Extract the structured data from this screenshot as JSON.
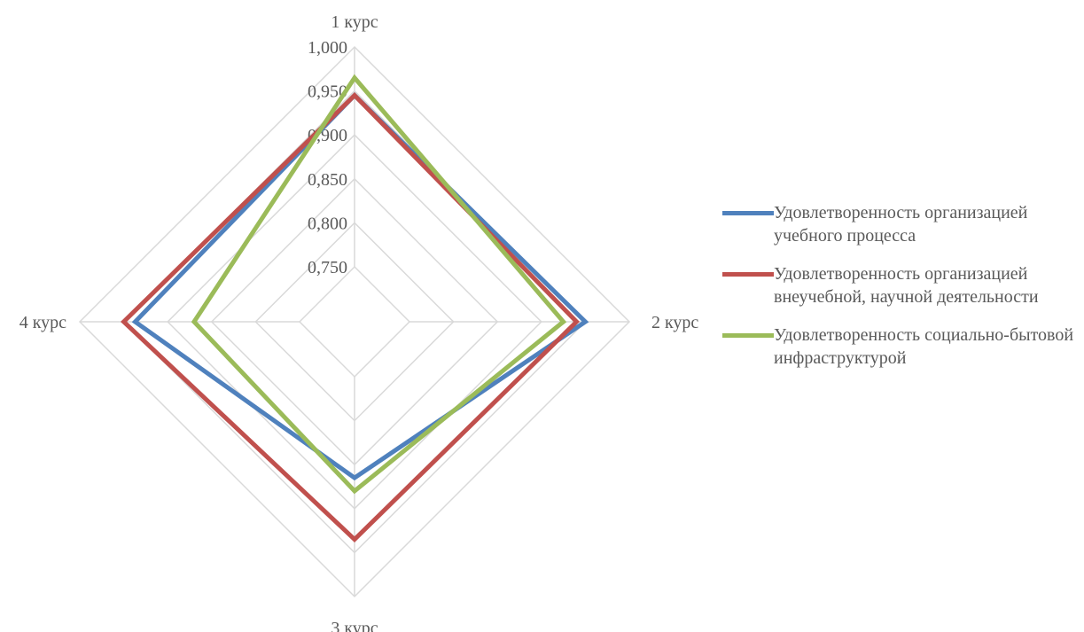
{
  "chart_data": {
    "type": "radar",
    "categories": [
      "1 курс",
      "2 курс",
      "3 курс",
      "4 курс"
    ],
    "axis": {
      "min": 0.75,
      "max": 1.0,
      "step": 0.05,
      "tick_labels": [
        "0,750",
        "0,800",
        "0,850",
        "0,900",
        "0,950",
        "1,000"
      ]
    },
    "series": [
      {
        "name": "Удовлетворенность организацией учебного процесса",
        "color": "#4f81bd",
        "values": [
          0.945,
          0.95,
          0.865,
          0.937
        ]
      },
      {
        "name": "Удовлетворенность организацией внеучебной, научной деятельности",
        "color": "#c0504d",
        "values": [
          0.945,
          0.94,
          0.935,
          0.95
        ]
      },
      {
        "name": "Удовлетворенность социально-бытовой инфраструктурой",
        "color": "#9bbb59",
        "values": [
          0.965,
          0.925,
          0.88,
          0.87
        ]
      }
    ],
    "legend_position": "right",
    "grid": true
  }
}
